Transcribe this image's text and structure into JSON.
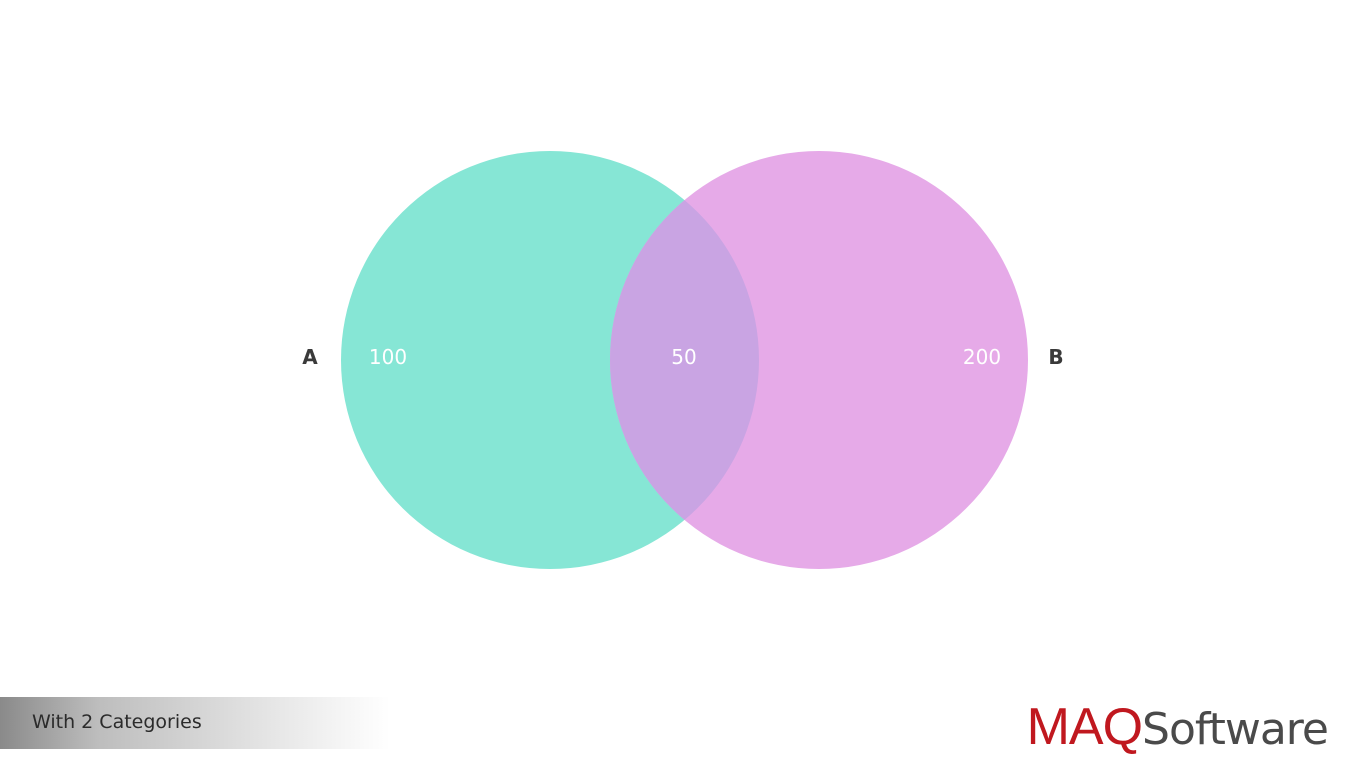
{
  "diagram": {
    "set_a": {
      "name": "A",
      "value": "100",
      "color": "#86e6d5"
    },
    "set_b": {
      "name": "B",
      "value": "200",
      "color": "#e6aae8"
    },
    "intersection": {
      "value": "50",
      "color": "#c9a4e3"
    }
  },
  "footer": {
    "caption": "With 2 Categories"
  },
  "logo": {
    "brand": "MAQ",
    "product": "Software",
    "brand_color": "#c0181f",
    "product_color": "#4a4a4a"
  }
}
